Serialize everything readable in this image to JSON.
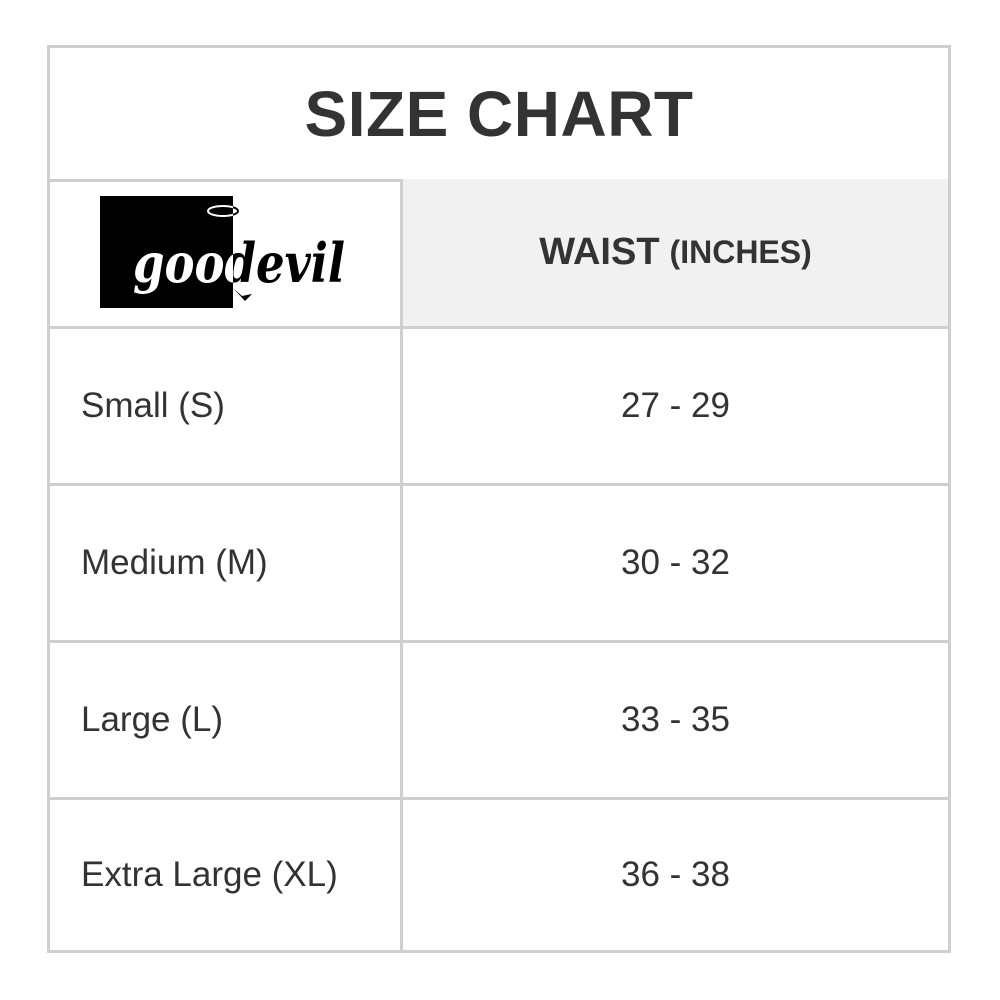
{
  "title": "SIZE CHART",
  "logo": {
    "text": "goodevil"
  },
  "header": {
    "column": "WAIST",
    "unit": "(INCHES)"
  },
  "rows": [
    {
      "size": "Small (S)",
      "waist": "27 - 29"
    },
    {
      "size": "Medium (M)",
      "waist": "30 - 32"
    },
    {
      "size": "Large (L)",
      "waist": "33 - 35"
    },
    {
      "size": "Extra Large (XL)",
      "waist": "36 - 38"
    }
  ],
  "colors": {
    "border": "#cfcfcf",
    "header_bg": "#f1f1f1",
    "text": "#333333"
  }
}
